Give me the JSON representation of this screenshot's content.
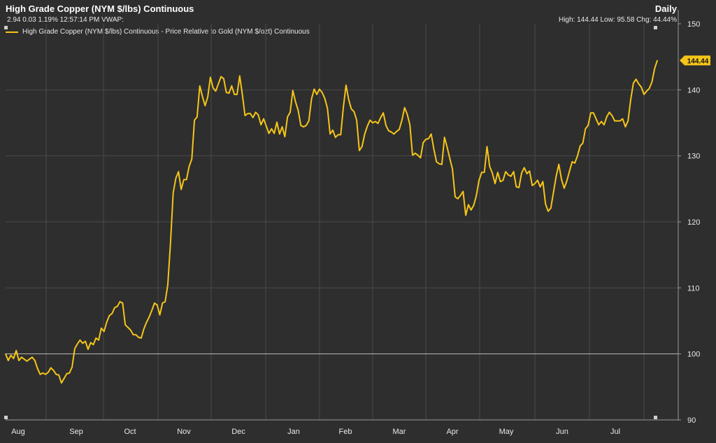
{
  "header": {
    "title": "High Grade Copper (NYM $/lbs) Continuous",
    "period": "Daily",
    "quote": "2.94 0.03 1.19% 12:57:14 PM VWAP:",
    "stats": "High: 144.44 Low: 95.58 Chg: 44.44%"
  },
  "colors": {
    "background": "#2e2e2e",
    "line": "#f5c518",
    "grid": "#4a4a4a",
    "baseline": "#bdbdbd"
  },
  "chart_data": {
    "type": "line",
    "title": "High Grade Copper (NYM $/lbs) Continuous",
    "ylim": [
      90,
      150
    ],
    "yticks": [
      90,
      100,
      110,
      120,
      130,
      140,
      150
    ],
    "y_axis_position": "right",
    "baseline": 100,
    "grid": true,
    "legend_position": "top-left",
    "last_value_label": "144.44",
    "x_tick_labels": [
      "Aug",
      "Sep",
      "Oct",
      "Nov",
      "Dec",
      "Jan",
      "Feb",
      "Mar",
      "Apr",
      "May",
      "Jun",
      "Jul"
    ],
    "series": [
      {
        "name": "High Grade Copper (NYM $/lbs) Continuous - Price Relative to Gold (NYM $/ozt) Continuous",
        "x_start": "Aug",
        "x_end": "Jul",
        "values": [
          100,
          99,
          99.8,
          99.3,
          100.5,
          99,
          99.5,
          99.2,
          98.9,
          99.2,
          99.5,
          99,
          97.8,
          96.9,
          97.1,
          96.9,
          97.2,
          97.9,
          97.5,
          96.9,
          96.8,
          95.6,
          96.3,
          97,
          97.1,
          98,
          100.8,
          101.5,
          102.1,
          101.6,
          101.9,
          100.7,
          101.7,
          101.4,
          102.4,
          102.1,
          103.9,
          103.4,
          104.8,
          105.8,
          106.1,
          107,
          107.2,
          107.9,
          107.7,
          104.4,
          104,
          103.6,
          102.9,
          102.9,
          102.5,
          102.4,
          103.8,
          104.8,
          105.6,
          106.6,
          107.7,
          107.4,
          105.9,
          107.7,
          107.9,
          110.5,
          116.9,
          124.4,
          126.6,
          127.6,
          124.9,
          126.4,
          126.4,
          128.4,
          129.5,
          135.4,
          135.9,
          140.6,
          139,
          137.6,
          138.9,
          141.9,
          140.3,
          139.8,
          140.9,
          142,
          141.7,
          139.6,
          139.5,
          140.6,
          139.3,
          139.3,
          142.1,
          139.3,
          136.1,
          136.4,
          136.4,
          135.8,
          136.6,
          136.2,
          134.7,
          135.6,
          134.5,
          133.4,
          134.1,
          133.4,
          135.1,
          133.3,
          134.4,
          132.9,
          135.9,
          136.6,
          139.9,
          138.2,
          136.9,
          134.6,
          134.4,
          134.6,
          135.3,
          138.6,
          140.1,
          139.3,
          140.1,
          139.6,
          138.7,
          137.2,
          133.3,
          133.9,
          132.8,
          133.2,
          133.2,
          137.4,
          140.7,
          138.5,
          137.1,
          136.7,
          135.4,
          130.8,
          131.4,
          133.3,
          134.5,
          135.4,
          135,
          135.2,
          134.9,
          135.8,
          136.5,
          134.6,
          133.8,
          133.6,
          133.3,
          133.7,
          134,
          135.4,
          137.3,
          136.3,
          134.7,
          130.1,
          130.4,
          130.1,
          129.7,
          132,
          132.5,
          132.6,
          133.3,
          131,
          129.1,
          128.8,
          128.7,
          132.8,
          131.3,
          129.6,
          128,
          123.8,
          123.5,
          124,
          124.6,
          121,
          122.6,
          121.8,
          122.5,
          124,
          126.3,
          127.5,
          127.5,
          131.4,
          128.4,
          127.4,
          125.8,
          127.5,
          126.1,
          126.3,
          127.6,
          127.1,
          126.9,
          127.6,
          125.3,
          125.2,
          127.4,
          128.2,
          127.3,
          127.7,
          125.5,
          125.8,
          126.3,
          125.3,
          126.1,
          122.7,
          121.6,
          122.1,
          124.5,
          126.9,
          128.7,
          126.4,
          125.1,
          126.2,
          127.7,
          129.1,
          128.9,
          130,
          131.5,
          131.9,
          134.1,
          134.6,
          136.5,
          136.5,
          135.6,
          134.7,
          135.2,
          134.7,
          135.9,
          136.6,
          136.1,
          135.3,
          135.3,
          135.3,
          135.6,
          134.4,
          135.3,
          138.5,
          141,
          141.6,
          140.9,
          140.4,
          139.3,
          139.8,
          140.2,
          141.2,
          143.2,
          144.44
        ]
      }
    ]
  }
}
